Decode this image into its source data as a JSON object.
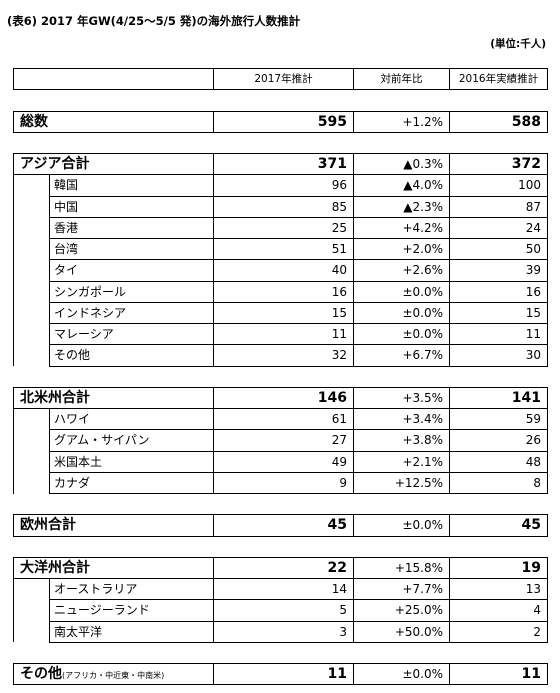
{
  "title": "(表6) 2017 年GW(4/25～5/5 発)の海外旅行人数推計",
  "unit": "(単位:千人)",
  "headers": [
    "",
    "2017年推計",
    "対前年比",
    "2016年実績推計"
  ],
  "groups": [
    {
      "name": "総数",
      "v2017": "595",
      "change": "+1.2%",
      "v2016": "588",
      "items": []
    },
    {
      "name": "アジア合計",
      "v2017": "371",
      "change": "▲0.3%",
      "v2016": "372",
      "items": [
        {
          "name": "韓国",
          "v2017": "96",
          "change": "▲4.0%",
          "v2016": "100"
        },
        {
          "name": "中国",
          "v2017": "85",
          "change": "▲2.3%",
          "v2016": "87"
        },
        {
          "name": "香港",
          "v2017": "25",
          "change": "+4.2%",
          "v2016": "24"
        },
        {
          "name": "台湾",
          "v2017": "51",
          "change": "+2.0%",
          "v2016": "50"
        },
        {
          "name": "タイ",
          "v2017": "40",
          "change": "+2.6%",
          "v2016": "39"
        },
        {
          "name": "シンガポール",
          "v2017": "16",
          "change": "±0.0%",
          "v2016": "16"
        },
        {
          "name": "インドネシア",
          "v2017": "15",
          "change": "±0.0%",
          "v2016": "15"
        },
        {
          "name": "マレーシア",
          "v2017": "11",
          "change": "±0.0%",
          "v2016": "11"
        },
        {
          "name": "その他",
          "v2017": "32",
          "change": "+6.7%",
          "v2016": "30"
        }
      ]
    },
    {
      "name": "北米州合計",
      "v2017": "146",
      "change": "+3.5%",
      "v2016": "141",
      "items": [
        {
          "name": "ハワイ",
          "v2017": "61",
          "change": "+3.4%",
          "v2016": "59"
        },
        {
          "name": "グアム・サイパン",
          "v2017": "27",
          "change": "+3.8%",
          "v2016": "26"
        },
        {
          "name": "米国本土",
          "v2017": "49",
          "change": "+2.1%",
          "v2016": "48"
        },
        {
          "name": "カナダ",
          "v2017": "9",
          "change": "+12.5%",
          "v2016": "8"
        }
      ]
    },
    {
      "name": "欧州合計",
      "v2017": "45",
      "change": "±0.0%",
      "v2016": "45",
      "items": []
    },
    {
      "name": "大洋州合計",
      "v2017": "22",
      "change": "+15.8%",
      "v2016": "19",
      "items": [
        {
          "name": "オーストラリア",
          "v2017": "14",
          "change": "+7.7%",
          "v2016": "13"
        },
        {
          "name": "ニュージーランド",
          "v2017": "5",
          "change": "+25.0%",
          "v2016": "4"
        },
        {
          "name": "南太平洋",
          "v2017": "3",
          "change": "+50.0%",
          "v2016": "2"
        }
      ]
    },
    {
      "name": "その他",
      "note": "(アフリカ・中近東・中南米)",
      "v2017": "11",
      "change": "±0.0%",
      "v2016": "11",
      "items": []
    }
  ]
}
